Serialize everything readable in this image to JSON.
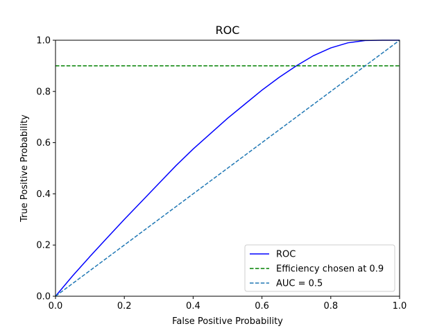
{
  "chart_data": {
    "type": "line",
    "title": "ROC",
    "xlabel": "False Positive Probability",
    "ylabel": "True Positive Probability",
    "xlim": [
      0.0,
      1.0
    ],
    "ylim": [
      0.0,
      1.0
    ],
    "xticks": [
      "0.0",
      "0.2",
      "0.4",
      "0.6",
      "0.8",
      "1.0"
    ],
    "yticks": [
      "0.0",
      "0.2",
      "0.4",
      "0.6",
      "0.8",
      "1.0"
    ],
    "grid": false,
    "legend_position": "lower-right",
    "series": [
      {
        "name": "ROC",
        "color": "#0000ff",
        "style": "solid",
        "x": [
          0.0,
          0.05,
          0.1,
          0.15,
          0.2,
          0.25,
          0.3,
          0.35,
          0.4,
          0.45,
          0.5,
          0.55,
          0.6,
          0.65,
          0.7,
          0.75,
          0.8,
          0.85,
          0.9,
          0.95,
          1.0
        ],
        "y": [
          0.0,
          0.08,
          0.155,
          0.228,
          0.3,
          0.37,
          0.44,
          0.51,
          0.575,
          0.635,
          0.695,
          0.75,
          0.805,
          0.855,
          0.9,
          0.94,
          0.97,
          0.99,
          0.999,
          1.0,
          1.0
        ]
      },
      {
        "name": "Efficiency chosen at 0.9",
        "color": "#008000",
        "style": "dashed",
        "x": [
          0.0,
          1.0
        ],
        "y": [
          0.9,
          0.9
        ]
      },
      {
        "name": "AUC = 0.5",
        "color": "#1f77b4",
        "style": "dashed",
        "x": [
          0.0,
          1.0
        ],
        "y": [
          0.0,
          1.0
        ]
      }
    ]
  }
}
